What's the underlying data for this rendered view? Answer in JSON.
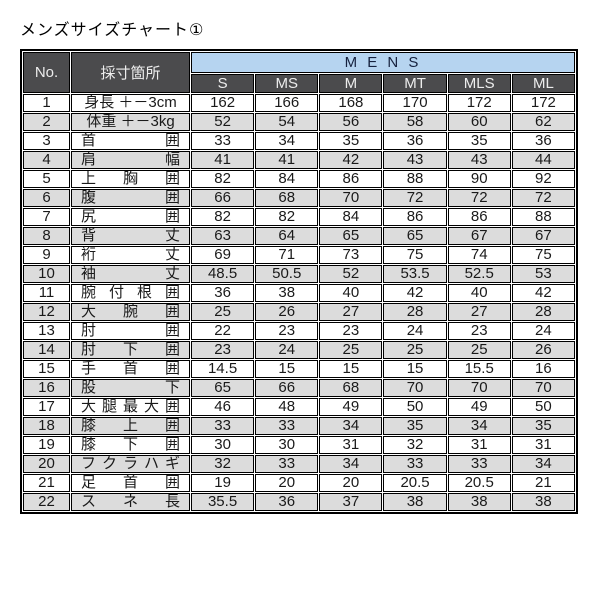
{
  "title": "メンズサイズチャート①",
  "table": {
    "no_header": "No.",
    "location_header": "採寸箇所",
    "group_header": "M E N S",
    "size_headers": [
      "S",
      "MS",
      "M",
      "MT",
      "MLS",
      "ML"
    ],
    "rows": [
      {
        "no": "1",
        "label": "身長 ＋－3cm",
        "align": "center",
        "values": [
          "162",
          "166",
          "168",
          "170",
          "172",
          "172"
        ]
      },
      {
        "no": "2",
        "label": "体重 ＋－3kg",
        "align": "center",
        "values": [
          "52",
          "54",
          "56",
          "58",
          "60",
          "62"
        ]
      },
      {
        "no": "3",
        "label": "首 囲",
        "align": "justify",
        "values": [
          "33",
          "34",
          "35",
          "36",
          "35",
          "36"
        ]
      },
      {
        "no": "4",
        "label": "肩 幅",
        "align": "justify",
        "values": [
          "41",
          "41",
          "42",
          "43",
          "43",
          "44"
        ]
      },
      {
        "no": "5",
        "label": "上 胸 囲",
        "align": "justify",
        "values": [
          "82",
          "84",
          "86",
          "88",
          "90",
          "92"
        ]
      },
      {
        "no": "6",
        "label": "腹 囲",
        "align": "justify",
        "values": [
          "66",
          "68",
          "70",
          "72",
          "72",
          "72"
        ]
      },
      {
        "no": "7",
        "label": "尻 囲",
        "align": "justify",
        "values": [
          "82",
          "82",
          "84",
          "86",
          "86",
          "88"
        ]
      },
      {
        "no": "8",
        "label": "背 丈",
        "align": "justify",
        "values": [
          "63",
          "64",
          "65",
          "65",
          "67",
          "67"
        ]
      },
      {
        "no": "9",
        "label": "裄 丈",
        "align": "justify",
        "values": [
          "69",
          "71",
          "73",
          "75",
          "74",
          "75"
        ]
      },
      {
        "no": "10",
        "label": "袖 丈",
        "align": "justify",
        "values": [
          "48.5",
          "50.5",
          "52",
          "53.5",
          "52.5",
          "53"
        ]
      },
      {
        "no": "11",
        "label": "腕 付 根 囲",
        "align": "justify",
        "values": [
          "36",
          "38",
          "40",
          "42",
          "40",
          "42"
        ]
      },
      {
        "no": "12",
        "label": "大 腕 囲",
        "align": "justify",
        "values": [
          "25",
          "26",
          "27",
          "28",
          "27",
          "28"
        ]
      },
      {
        "no": "13",
        "label": "肘 囲",
        "align": "justify",
        "values": [
          "22",
          "23",
          "23",
          "24",
          "23",
          "24"
        ]
      },
      {
        "no": "14",
        "label": "肘 下 囲",
        "align": "justify",
        "values": [
          "23",
          "24",
          "25",
          "25",
          "25",
          "26"
        ]
      },
      {
        "no": "15",
        "label": "手 首 囲",
        "align": "justify",
        "values": [
          "14.5",
          "15",
          "15",
          "15",
          "15.5",
          "16"
        ]
      },
      {
        "no": "16",
        "label": "股 下",
        "align": "justify",
        "values": [
          "65",
          "66",
          "68",
          "70",
          "70",
          "70"
        ]
      },
      {
        "no": "17",
        "label": "大 腿 最 大 囲",
        "align": "justify",
        "values": [
          "46",
          "48",
          "49",
          "50",
          "49",
          "50"
        ]
      },
      {
        "no": "18",
        "label": "膝 上 囲",
        "align": "justify",
        "values": [
          "33",
          "33",
          "34",
          "35",
          "34",
          "35"
        ]
      },
      {
        "no": "19",
        "label": "膝 下 囲",
        "align": "justify",
        "values": [
          "30",
          "30",
          "31",
          "32",
          "31",
          "31"
        ]
      },
      {
        "no": "20",
        "label": "フクラハギ",
        "align": "justify",
        "values": [
          "32",
          "33",
          "34",
          "33",
          "33",
          "34"
        ]
      },
      {
        "no": "21",
        "label": "足 首 囲",
        "align": "justify",
        "values": [
          "19",
          "20",
          "20",
          "20.5",
          "20.5",
          "21"
        ]
      },
      {
        "no": "22",
        "label": "ス ネ 長",
        "align": "justify",
        "values": [
          "35.5",
          "36",
          "37",
          "38",
          "38",
          "38"
        ]
      }
    ]
  },
  "colors": {
    "header_bg": "#4b4b4d",
    "header_text": "#ededed",
    "mens_band_bg": "#b6d4f0",
    "mens_band_text": "#16213e",
    "alt_row_bg": "#dcdcdc",
    "border": "#000000"
  }
}
